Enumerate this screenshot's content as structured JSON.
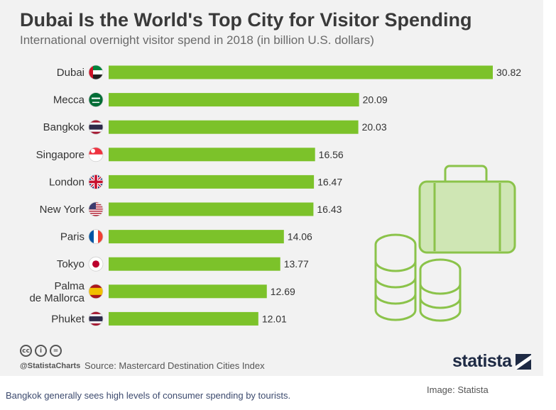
{
  "chart_data": {
    "type": "bar",
    "orientation": "horizontal",
    "title": "Dubai Is the World's Top City for Visitor Spending",
    "subtitle": "International overnight visitor spend in 2018 (in billion U.S. dollars)",
    "categories": [
      "Dubai",
      "Mecca",
      "Bangkok",
      "Singapore",
      "London",
      "New York",
      "Paris",
      "Tokyo",
      "Palma de Mallorca",
      "Phuket"
    ],
    "category_lines": [
      [
        "Dubai"
      ],
      [
        "Mecca"
      ],
      [
        "Bangkok"
      ],
      [
        "Singapore"
      ],
      [
        "London"
      ],
      [
        "New York"
      ],
      [
        "Paris"
      ],
      [
        "Tokyo"
      ],
      [
        "Palma",
        "de Mallorca"
      ],
      [
        "Phuket"
      ]
    ],
    "values": [
      30.82,
      20.09,
      20.03,
      16.56,
      16.47,
      16.43,
      14.06,
      13.77,
      12.69,
      12.01
    ],
    "value_labels": [
      "30.82",
      "20.09",
      "20.03",
      "16.56",
      "16.47",
      "16.43",
      "14.06",
      "13.77",
      "12.69",
      "12.01"
    ],
    "flags": [
      "uae-flag-icon",
      "saudi-flag-icon",
      "thailand-flag-icon",
      "singapore-flag-icon",
      "uk-flag-icon",
      "usa-flag-icon",
      "france-flag-icon",
      "japan-flag-icon",
      "spain-flag-icon",
      "thailand-flag-icon"
    ],
    "xlim": [
      0,
      30.82
    ],
    "grid": false,
    "legend": "none",
    "bar_color": "#7cc22a"
  },
  "footer": {
    "handle": "@StatistaCharts",
    "source": "Source: Mastercard Destination Cities Index",
    "brand": "statista",
    "cc_icons": [
      "cc",
      "by",
      "="
    ]
  },
  "caption": "Bangkok generally sees high levels of consumer spending by tourists.",
  "credit": "Image: Statista",
  "colors": {
    "bar": "#7cc22a",
    "illustration": "#8bc34a",
    "panel_bg": "#f2f2f2",
    "brand": "#1e2a44"
  }
}
